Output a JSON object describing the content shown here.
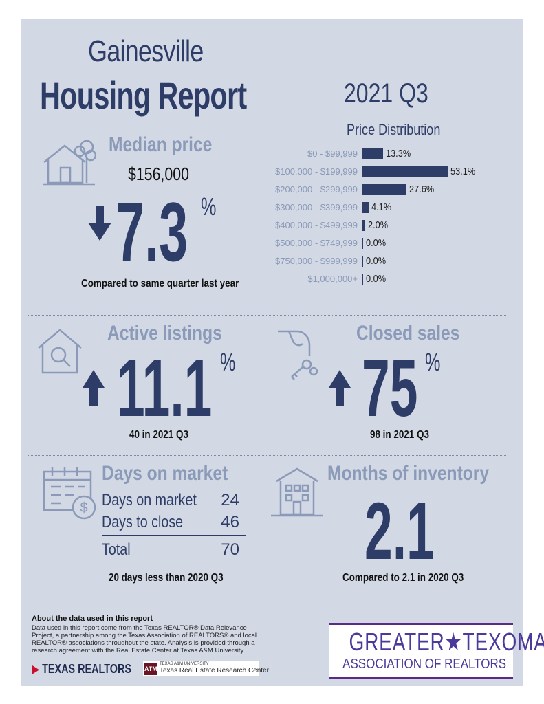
{
  "header": {
    "title_line1": "Gainesville",
    "title_line2": "Housing Report",
    "period": "2021 Q3"
  },
  "median_price": {
    "title": "Median price",
    "value": "$156,000",
    "change": "7.3",
    "unit": "%",
    "direction": "down",
    "note": "Compared to same quarter last year",
    "icon": "house-with-tree-icon"
  },
  "price_distribution": {
    "title": "Price Distribution",
    "rows": [
      {
        "label": "$0 - $99,999",
        "value_text": "13.3%",
        "value": 13.3
      },
      {
        "label": "$100,000 - $199,999",
        "value_text": "53.1%",
        "value": 53.1
      },
      {
        "label": "$200,000 - $299,999",
        "value_text": "27.6%",
        "value": 27.6
      },
      {
        "label": "$300,000 - $399,999",
        "value_text": "4.1%",
        "value": 4.1
      },
      {
        "label": "$400,000 - $499,999",
        "value_text": "2.0%",
        "value": 2.0
      },
      {
        "label": "$500,000 - $749,999",
        "value_text": "0.0%",
        "value": 0.0
      },
      {
        "label": "$750,000 - $999,999",
        "value_text": "0.0%",
        "value": 0.0
      },
      {
        "label": "$1,000,000+",
        "value_text": "0.0%",
        "value": 0.0
      }
    ]
  },
  "active_listings": {
    "title": "Active listings",
    "change": "11.1",
    "unit": "%",
    "direction": "up",
    "note": "40 in 2021 Q3",
    "icon": "house-search-icon"
  },
  "closed_sales": {
    "title": "Closed sales",
    "change": "75",
    "unit": "%",
    "direction": "up",
    "note": "98 in 2021 Q3",
    "icon": "hand-keys-icon"
  },
  "days_on_market": {
    "title": "Days on market",
    "rows": [
      {
        "label": "Days on market",
        "value": "24"
      },
      {
        "label": "Days to close",
        "value": "46"
      }
    ],
    "total_label": "Total",
    "total_value": "70",
    "note": "20 days less than 2020 Q3",
    "icon": "calendar-dollar-icon"
  },
  "months_inventory": {
    "title": "Months of inventory",
    "value": "2.1",
    "note": "Compared to 2.1 in 2020 Q3",
    "icon": "building-icon"
  },
  "footer": {
    "heading": "About the data used in this report",
    "text": "Data used in this report come from the Texas REALTOR® Data Relevance Project, a partnership among the Texas Association of REALTORS® and local REALTOR® associations throughout the state. Analysis is provided through a research agreement with the Real Estate Center at Texas A&M University.",
    "texas_realtors": "TEXAS REALTORS",
    "tamu_small": "TEXAS A&M UNIVERSITY",
    "tamu_large": "Texas Real Estate Research Center",
    "tamu_mark": "ATM"
  },
  "brand": {
    "line1": "GREATER★TEXOMA",
    "line2": "ASSOCIATION OF REALTORS"
  },
  "colors": {
    "navy": "#2e3d68",
    "muted": "#8a9ab8",
    "panel": "#d3d9e4",
    "purple": "#4c3a9a"
  }
}
